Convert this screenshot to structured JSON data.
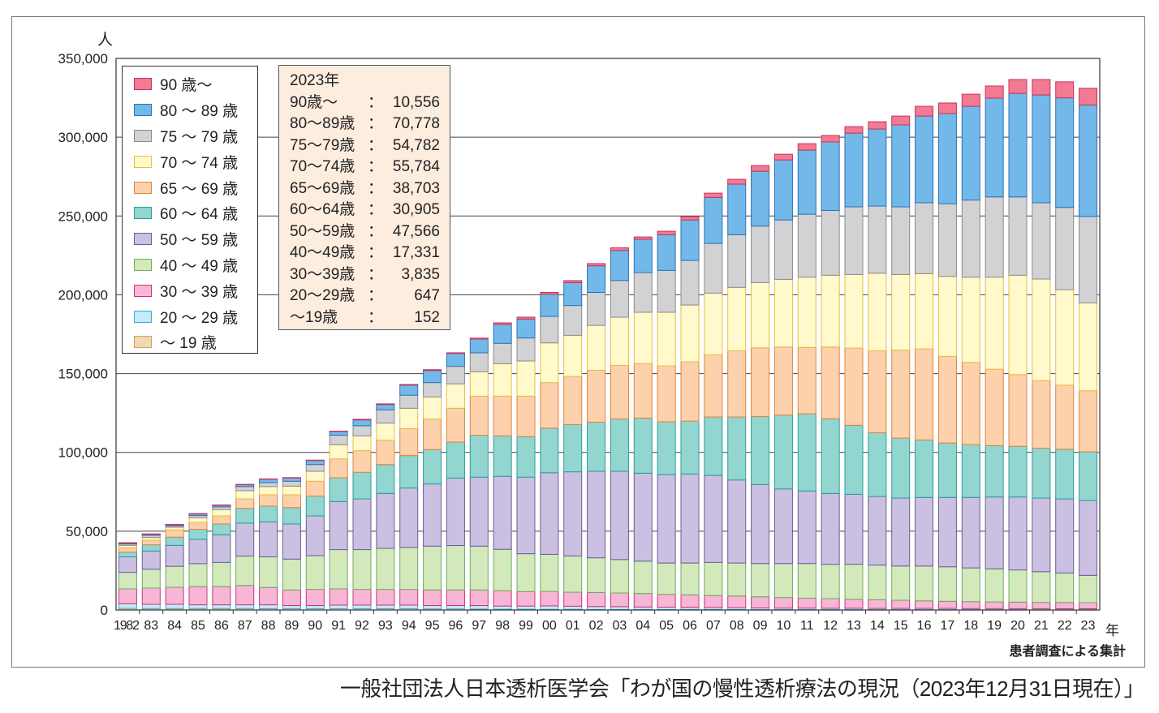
{
  "chart_data": {
    "type": "bar",
    "stacked": true,
    "title": "",
    "ylabel": "人",
    "xlabel": "年",
    "ylim": [
      0,
      350000
    ],
    "y_ticks": [
      "0",
      "50,000",
      "100,000",
      "150,000",
      "200,000",
      "250,000",
      "300,000",
      "350,000"
    ],
    "y_tick_values": [
      0,
      50000,
      100000,
      150000,
      200000,
      250000,
      300000,
      350000
    ],
    "grid": true,
    "legend_position": "top-left",
    "categories": [
      "1982",
      "83",
      "84",
      "85",
      "86",
      "87",
      "88",
      "89",
      "90",
      "91",
      "92",
      "93",
      "94",
      "95",
      "96",
      "97",
      "98",
      "99",
      "00",
      "01",
      "02",
      "03",
      "04",
      "05",
      "06",
      "07",
      "08",
      "09",
      "10",
      "11",
      "12",
      "13",
      "14",
      "15",
      "16",
      "17",
      "18",
      "19",
      "20",
      "21",
      "22",
      "23"
    ],
    "series": [
      {
        "name": "〜 19 歳",
        "color": "#ecd9b8",
        "border": "#d9a050",
        "values": [
          1000,
          900,
          900,
          900,
          900,
          900,
          800,
          800,
          800,
          800,
          800,
          800,
          800,
          700,
          700,
          600,
          500,
          500,
          400,
          400,
          300,
          300,
          300,
          300,
          300,
          300,
          300,
          200,
          200,
          200,
          200,
          200,
          200,
          200,
          200,
          200,
          200,
          200,
          200,
          150,
          150,
          152
        ]
      },
      {
        "name": "20 〜 29 歳",
        "color": "#c4ebf6",
        "border": "#3aa8d8",
        "values": [
          3000,
          2700,
          2700,
          2400,
          2400,
          2400,
          2500,
          2000,
          2000,
          2300,
          2300,
          2300,
          2300,
          2100,
          2100,
          2200,
          2000,
          2000,
          2200,
          2000,
          1900,
          1800,
          1600,
          1500,
          1400,
          1300,
          1200,
          1100,
          1000,
          1000,
          900,
          900,
          800,
          800,
          800,
          800,
          700,
          700,
          650,
          700,
          650,
          647
        ]
      },
      {
        "name": "30 〜 39 歳",
        "color": "#f8b6d6",
        "border": "#d0307a",
        "values": [
          9400,
          10300,
          10800,
          11500,
          11500,
          12300,
          11000,
          9900,
          10300,
          10300,
          10000,
          10000,
          10000,
          9900,
          9900,
          9900,
          9700,
          9200,
          9200,
          8900,
          8900,
          8700,
          8600,
          8100,
          7900,
          7600,
          7400,
          7100,
          6700,
          6300,
          6100,
          5700,
          5500,
          5200,
          4800,
          4500,
          4400,
          4200,
          4150,
          3950,
          3950,
          3835
        ]
      },
      {
        "name": "40 〜 49 歳",
        "color": "#d3e9bb",
        "border": "#6cae5c",
        "values": [
          10500,
          12000,
          13300,
          14600,
          15400,
          18600,
          19400,
          19600,
          21400,
          24900,
          25200,
          26000,
          26600,
          27800,
          28200,
          27800,
          26300,
          24000,
          23500,
          23000,
          22000,
          21200,
          20500,
          19900,
          20200,
          21000,
          20900,
          21100,
          21600,
          22000,
          21800,
          22200,
          22000,
          21700,
          22100,
          21900,
          21400,
          21000,
          20400,
          19500,
          18700,
          17331
        ]
      },
      {
        "name": "50 〜 59 歳",
        "color": "#cbc0e1",
        "border": "#6a5c9c",
        "values": [
          9800,
          11500,
          13300,
          15400,
          17500,
          20900,
          22200,
          22300,
          25200,
          30500,
          32200,
          34900,
          37700,
          39500,
          42800,
          43800,
          46300,
          48600,
          51800,
          53400,
          54900,
          56000,
          55800,
          56100,
          56500,
          55200,
          52700,
          50100,
          47300,
          46000,
          44900,
          44400,
          43500,
          43100,
          43500,
          44000,
          44700,
          45600,
          46300,
          46700,
          47000,
          47566
        ]
      },
      {
        "name": "60 〜 64 歳",
        "color": "#93d5cf",
        "border": "#2a9ea0",
        "values": [
          3000,
          4000,
          5200,
          6400,
          6900,
          9400,
          10000,
          10400,
          12600,
          15100,
          16900,
          18300,
          20600,
          21800,
          22900,
          26600,
          25700,
          25700,
          28300,
          30000,
          31200,
          33200,
          35000,
          33500,
          33600,
          37100,
          40000,
          43200,
          46900,
          49000,
          47500,
          43800,
          40500,
          38100,
          36500,
          34600,
          33600,
          32600,
          32200,
          31700,
          31600,
          30905
        ]
      },
      {
        "name": "65 〜 69 歳",
        "color": "#fcd1ab",
        "border": "#e2843c",
        "values": [
          2800,
          2900,
          4600,
          4400,
          5100,
          6000,
          7200,
          8100,
          9400,
          12000,
          13700,
          15500,
          17100,
          19300,
          21400,
          24800,
          25200,
          25700,
          28900,
          30500,
          32900,
          34000,
          34500,
          35500,
          37600,
          39400,
          42000,
          43600,
          43200,
          42100,
          45500,
          49000,
          52000,
          55800,
          57800,
          54900,
          52100,
          48500,
          45500,
          42800,
          40600,
          38703
        ]
      },
      {
        "name": "70 〜 74 歳",
        "color": "#fff9cc",
        "border": "#e8c040",
        "values": [
          1500,
          1700,
          1700,
          2900,
          4000,
          5200,
          5200,
          5500,
          6300,
          9000,
          9400,
          10800,
          12900,
          14100,
          15500,
          15500,
          20600,
          22300,
          25200,
          26100,
          28500,
          30600,
          32600,
          34000,
          36000,
          39200,
          40200,
          41300,
          42900,
          44600,
          45500,
          46700,
          49200,
          48000,
          47700,
          50800,
          54100,
          58400,
          63000,
          64500,
          60600,
          55784
        ]
      },
      {
        "name": "75 〜 79 歳",
        "color": "#d2d2d4",
        "border": "#8a8a8e",
        "values": [
          900,
          1400,
          900,
          1400,
          1700,
          2600,
          2500,
          3100,
          4300,
          6000,
          6400,
          8400,
          8300,
          9100,
          11100,
          12000,
          12900,
          14600,
          16800,
          18900,
          20900,
          23300,
          25200,
          26600,
          28300,
          31500,
          33400,
          35900,
          37700,
          39900,
          41100,
          42900,
          42600,
          42900,
          45000,
          46100,
          48900,
          50900,
          49700,
          48400,
          52200,
          54782
        ]
      },
      {
        "name": "80 〜 89 歳",
        "color": "#72b9e9",
        "border": "#2a72b8",
        "values": [
          700,
          800,
          800,
          1200,
          1200,
          1300,
          2300,
          2200,
          2600,
          2500,
          3700,
          3400,
          6400,
          7700,
          8200,
          8700,
          12000,
          12000,
          14100,
          14500,
          16900,
          19000,
          21100,
          22600,
          25700,
          29200,
          32100,
          34800,
          38100,
          40700,
          43500,
          46800,
          48900,
          52000,
          55000,
          57200,
          59500,
          62700,
          65700,
          68400,
          69500,
          70778
        ]
      },
      {
        "name": "90 歳〜",
        "color": "#f27a93",
        "border": "#c8325a",
        "values": [
          50,
          50,
          50,
          50,
          50,
          100,
          100,
          100,
          200,
          100,
          400,
          400,
          400,
          500,
          400,
          600,
          1000,
          1200,
          1100,
          1300,
          1400,
          1700,
          1500,
          2200,
          2100,
          2700,
          3100,
          3600,
          3600,
          4100,
          4100,
          4100,
          4600,
          5600,
          6200,
          6700,
          7700,
          7700,
          8800,
          9800,
          10200,
          10556
        ]
      }
    ]
  },
  "axis": {
    "y_unit": "人",
    "x_unit": "年"
  },
  "legend": {
    "items": [
      {
        "label": "90 歳〜",
        "color": "#f27a93",
        "border": "#c8325a"
      },
      {
        "label": "80 〜 89 歳",
        "color": "#72b9e9",
        "border": "#2a72b8"
      },
      {
        "label": "75 〜 79 歳",
        "color": "#d2d2d4",
        "border": "#8a8a8e"
      },
      {
        "label": "70 〜 74 歳",
        "color": "#fff9cc",
        "border": "#e8c040"
      },
      {
        "label": "65 〜 69 歳",
        "color": "#fcd1ab",
        "border": "#e2843c"
      },
      {
        "label": "60 〜 64 歳",
        "color": "#93d5cf",
        "border": "#2a9ea0"
      },
      {
        "label": "50 〜 59 歳",
        "color": "#cbc0e1",
        "border": "#6a5c9c"
      },
      {
        "label": "40 〜 49 歳",
        "color": "#d3e9bb",
        "border": "#6cae5c"
      },
      {
        "label": "30 〜 39 歳",
        "color": "#f8b6d6",
        "border": "#d0307a"
      },
      {
        "label": "20 〜 29 歳",
        "color": "#c4ebf6",
        "border": "#3aa8d8"
      },
      {
        "label": "〜 19 歳",
        "color": "#ecd9b8",
        "border": "#d9a050"
      }
    ]
  },
  "info_box": {
    "title": "2023年",
    "rows": [
      {
        "label": "90歳〜",
        "value": "10,556"
      },
      {
        "label": "80〜89歳",
        "value": "70,778"
      },
      {
        "label": "75〜79歳",
        "value": "54,782"
      },
      {
        "label": "70〜74歳",
        "value": "55,784"
      },
      {
        "label": "65〜69歳",
        "value": "38,703"
      },
      {
        "label": "60〜64歳",
        "value": "30,905"
      },
      {
        "label": "50〜59歳",
        "value": "47,566"
      },
      {
        "label": "40〜49歳",
        "value": "17,331"
      },
      {
        "label": "30〜39歳",
        "value": "3,835"
      },
      {
        "label": "20〜29歳",
        "value": "647"
      },
      {
        "label": "〜19歳",
        "value": "152"
      }
    ],
    "colon": "：",
    "background": "#fdeddf"
  },
  "note": "患者調査による集計",
  "source": "一般社団法人日本透析医学会「わが国の慢性透析療法の現況（2023年12月31日現在）」"
}
